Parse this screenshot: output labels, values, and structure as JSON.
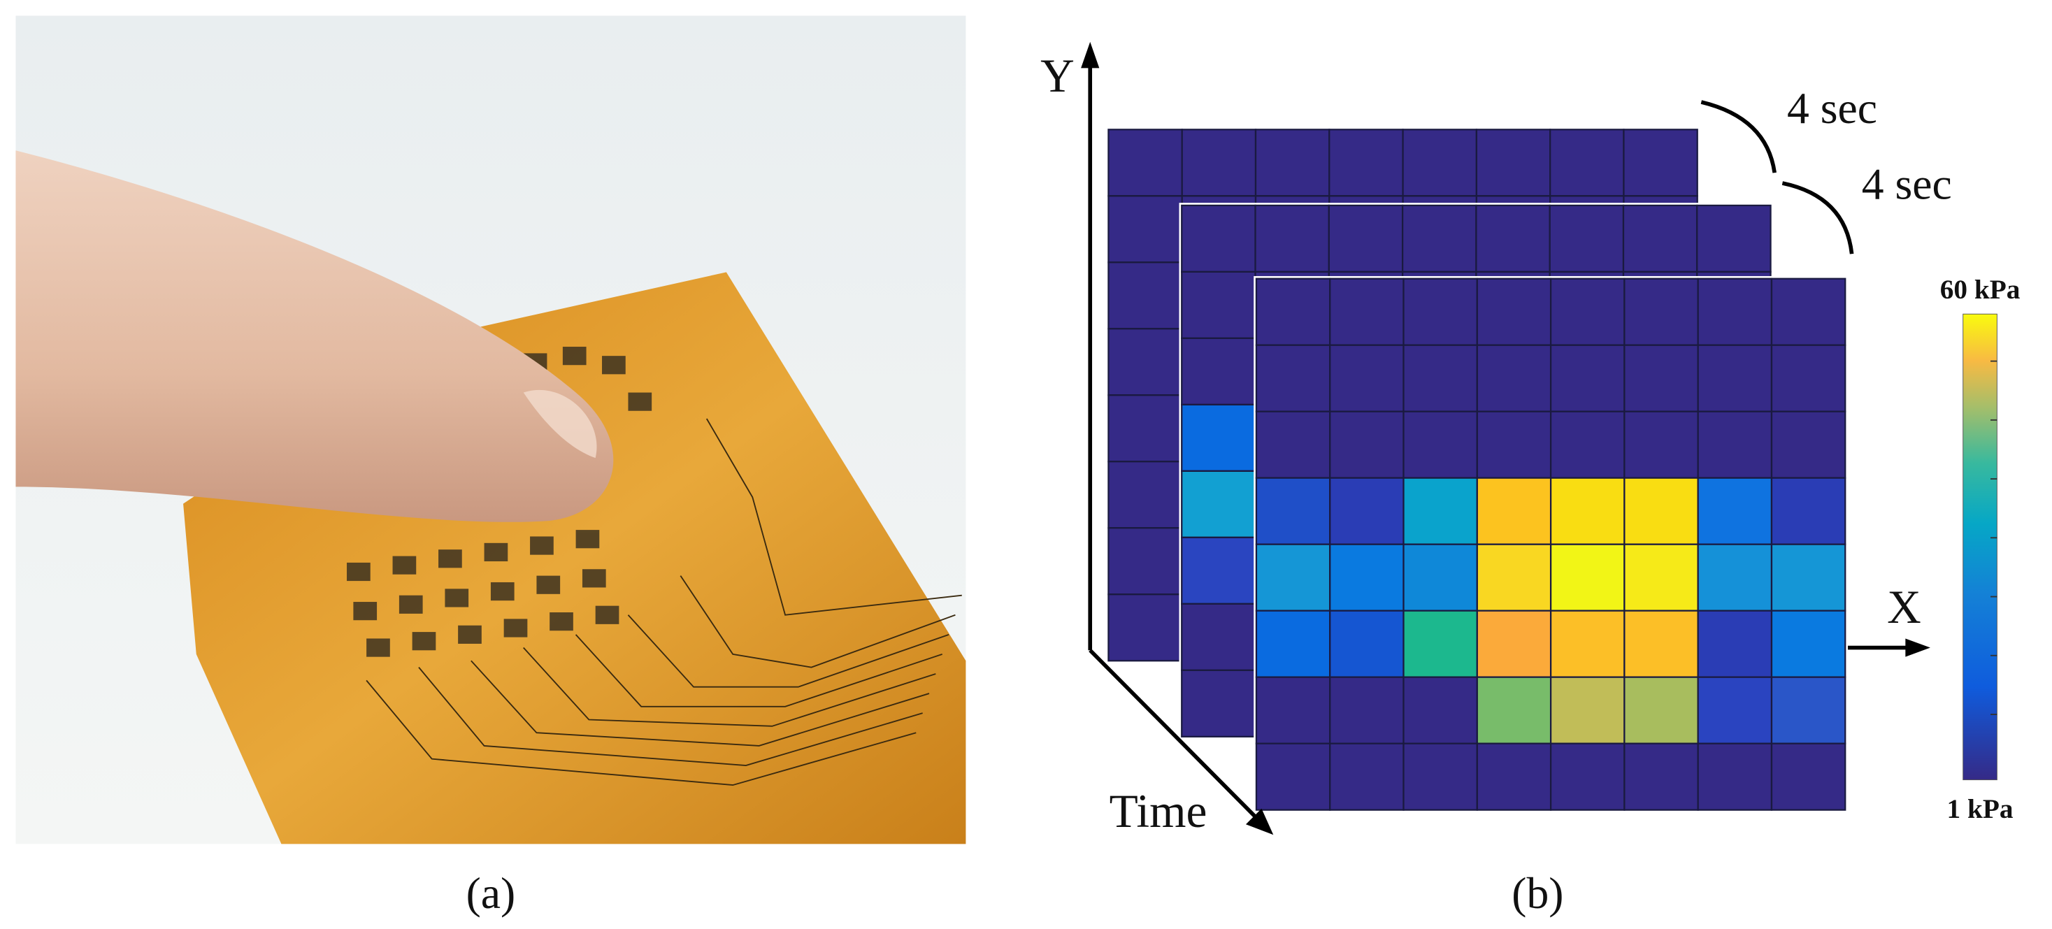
{
  "panels": [
    {
      "label": "(a)"
    },
    {
      "label": "(b)",
      "axes": {
        "y": "Y",
        "x": "X",
        "time": "Time"
      },
      "intervals": [
        "4 sec",
        "4 sec"
      ],
      "colorbar": {
        "max": "60 kPa",
        "min": "1 kPa"
      }
    }
  ],
  "heatmap": {
    "front": [
      [
        "#352a87",
        "#352a87",
        "#352a87",
        "#352a87",
        "#352a87",
        "#352a87",
        "#352a87",
        "#352a87"
      ],
      [
        "#352a87",
        "#352a87",
        "#352a87",
        "#352a87",
        "#352a87",
        "#352a87",
        "#352a87",
        "#352a87"
      ],
      [
        "#352a87",
        "#352a87",
        "#352a87",
        "#352a87",
        "#352a87",
        "#352a87",
        "#352a87",
        "#352a87"
      ],
      [
        "#1f4fc8",
        "#2a3db5",
        "#0aa3cc",
        "#fcc31f",
        "#f9dd12",
        "#f9dd12",
        "#0f73e0",
        "#2a3db5"
      ],
      [
        "#1596d6",
        "#0a7ae0",
        "#0f88d8",
        "#f9d722",
        "#f2f516",
        "#f6ea18",
        "#1591d8",
        "#1596d6"
      ],
      [
        "#0a6be0",
        "#1556d2",
        "#1cb88e",
        "#fbaa3a",
        "#fcbf27",
        "#fcbf27",
        "#2a3db5",
        "#0a7ae0"
      ],
      [
        "#352a87",
        "#352a87",
        "#352a87",
        "#78bc6a",
        "#c1bd58",
        "#a8bd5e",
        "#2a44c0",
        "#2a56c8"
      ],
      [
        "#352a87",
        "#352a87",
        "#352a87",
        "#352a87",
        "#352a87",
        "#352a87",
        "#352a87",
        "#352a87"
      ]
    ],
    "middle_left_column": [
      "#352a87",
      "#352a87",
      "#352a87",
      "#0a6be0",
      "#12a0d2",
      "#2a45c0",
      "#352a87",
      "#352a87"
    ],
    "background": "#352a87"
  }
}
